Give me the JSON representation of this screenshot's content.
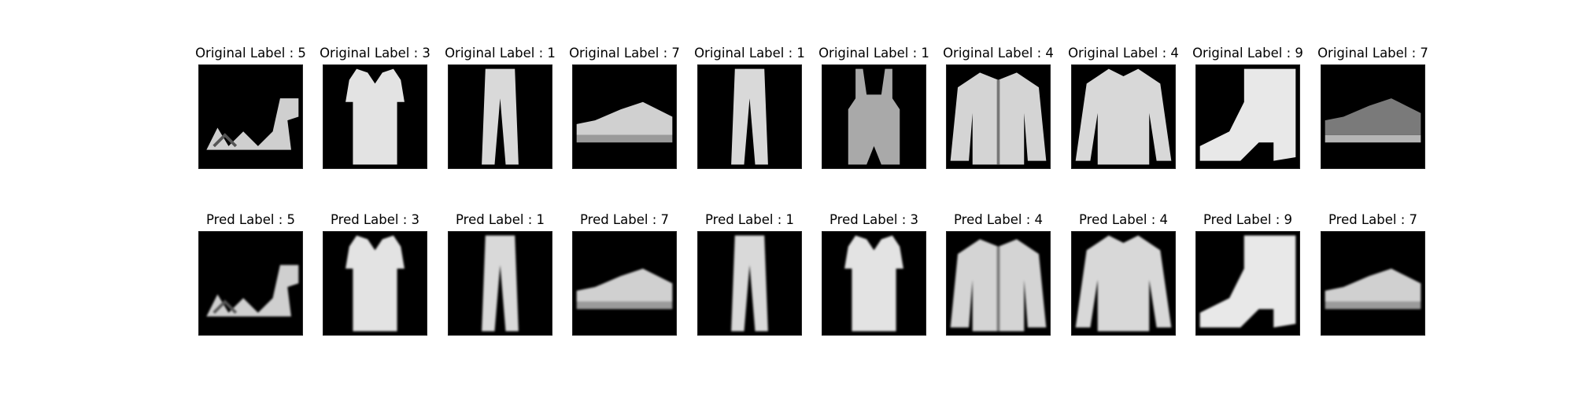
{
  "figure": {
    "background": "#ffffff",
    "image_background": "#000000",
    "rows": [
      {
        "name": "original",
        "panels": [
          {
            "title": "Original Label : 5",
            "depicts": "sandal"
          },
          {
            "title": "Original Label : 3",
            "depicts": "dress"
          },
          {
            "title": "Original Label : 1",
            "depicts": "trouser"
          },
          {
            "title": "Original Label : 7",
            "depicts": "sneaker"
          },
          {
            "title": "Original Label : 1",
            "depicts": "trouser"
          },
          {
            "title": "Original Label : 1",
            "depicts": "overalls"
          },
          {
            "title": "Original Label : 4",
            "depicts": "coat"
          },
          {
            "title": "Original Label : 4",
            "depicts": "pullover"
          },
          {
            "title": "Original Label : 9",
            "depicts": "ankle-boot"
          },
          {
            "title": "Original Label : 7",
            "depicts": "sneaker-dark"
          }
        ]
      },
      {
        "name": "pred",
        "panels": [
          {
            "title": "Pred Label : 5",
            "depicts": "sandal"
          },
          {
            "title": "Pred Label : 3",
            "depicts": "dress"
          },
          {
            "title": "Pred Label : 1",
            "depicts": "trouser"
          },
          {
            "title": "Pred Label : 7",
            "depicts": "sneaker"
          },
          {
            "title": "Pred Label : 1",
            "depicts": "trouser"
          },
          {
            "title": "Pred Label : 3",
            "depicts": "dress"
          },
          {
            "title": "Pred Label : 4",
            "depicts": "coat"
          },
          {
            "title": "Pred Label : 4",
            "depicts": "pullover"
          },
          {
            "title": "Pred Label : 9",
            "depicts": "ankle-boot"
          },
          {
            "title": "Pred Label : 7",
            "depicts": "sneaker"
          }
        ]
      }
    ]
  }
}
